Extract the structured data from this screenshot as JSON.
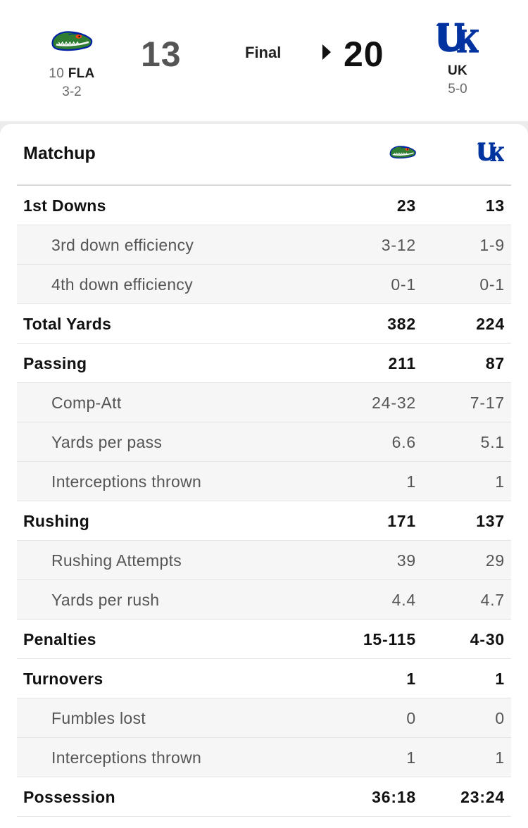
{
  "game": {
    "status": "Final",
    "away": {
      "rank": "10",
      "abbr": "FLA",
      "record": "3-2",
      "score": "13",
      "logo": "gator-head-icon",
      "color": "#0021a5",
      "accent": "#fa4616"
    },
    "home": {
      "abbr": "UK",
      "record": "5-0",
      "score": "20",
      "logo": "uk-logo-icon",
      "color": "#0033a0",
      "winner": true
    }
  },
  "matchup": {
    "title": "Matchup",
    "rows": [
      {
        "label": "1st Downs",
        "away": "23",
        "home": "13",
        "main": true
      },
      {
        "label": "3rd down efficiency",
        "away": "3-12",
        "home": "1-9",
        "main": false
      },
      {
        "label": "4th down efficiency",
        "away": "0-1",
        "home": "0-1",
        "main": false
      },
      {
        "label": "Total Yards",
        "away": "382",
        "home": "224",
        "main": true
      },
      {
        "label": "Passing",
        "away": "211",
        "home": "87",
        "main": true
      },
      {
        "label": "Comp-Att",
        "away": "24-32",
        "home": "7-17",
        "main": false
      },
      {
        "label": "Yards per pass",
        "away": "6.6",
        "home": "5.1",
        "main": false
      },
      {
        "label": "Interceptions thrown",
        "away": "1",
        "home": "1",
        "main": false
      },
      {
        "label": "Rushing",
        "away": "171",
        "home": "137",
        "main": true
      },
      {
        "label": "Rushing Attempts",
        "away": "39",
        "home": "29",
        "main": false
      },
      {
        "label": "Yards per rush",
        "away": "4.4",
        "home": "4.7",
        "main": false
      },
      {
        "label": "Penalties",
        "away": "15-115",
        "home": "4-30",
        "main": true
      },
      {
        "label": "Turnovers",
        "away": "1",
        "home": "1",
        "main": true
      },
      {
        "label": "Fumbles lost",
        "away": "0",
        "home": "0",
        "main": false
      },
      {
        "label": "Interceptions thrown",
        "away": "1",
        "home": "1",
        "main": false
      },
      {
        "label": "Possession",
        "away": "36:18",
        "home": "23:24",
        "main": true
      }
    ]
  }
}
